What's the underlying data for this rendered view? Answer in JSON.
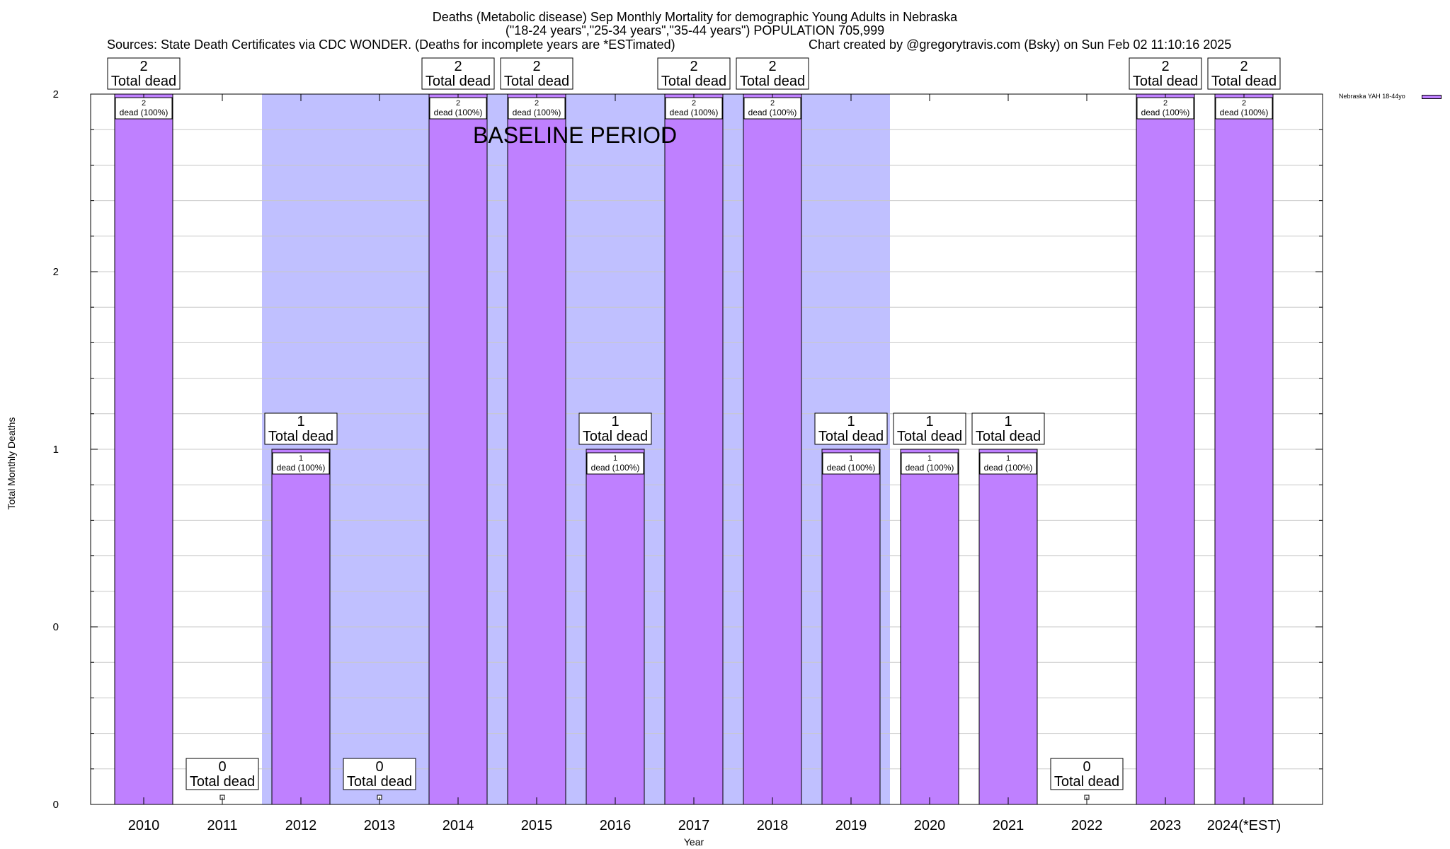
{
  "chart_data": {
    "type": "bar",
    "title": "Deaths (Metabolic disease) Sep Monthly Mortality for demographic Young Adults in Nebraska",
    "subtitle": "(\"18-24 years\",\"25-34 years\",\"35-44 years\") POPULATION 705,999",
    "sources": "Sources: State Death Certificates via CDC WONDER. (Deaths for incomplete years are *ESTimated)",
    "credit": "Chart created by @gregorytravis.com (Bsky) on Sun Feb 02 11:10:16 2025",
    "xlabel": "Year",
    "ylabel": "Total Monthly Deaths",
    "annotation": "BASELINE PERIOD",
    "baseline_range": [
      "2012",
      "2019"
    ],
    "categories": [
      "2010",
      "2011",
      "2012",
      "2013",
      "2014",
      "2015",
      "2016",
      "2017",
      "2018",
      "2019",
      "2020",
      "2021",
      "2022",
      "2023",
      "2024(*EST)"
    ],
    "series": [
      {
        "name": "Nebraska YAH 18-44yo",
        "values": [
          2,
          0,
          1,
          0,
          2,
          2,
          1,
          2,
          2,
          1,
          1,
          1,
          0,
          2,
          2
        ]
      }
    ],
    "total_labels": [
      "2\nTotal dead",
      "0\nTotal dead",
      "1\nTotal dead",
      "0\nTotal dead",
      "2\nTotal dead",
      "2\nTotal dead",
      "1\nTotal dead",
      "2\nTotal dead",
      "2\nTotal dead",
      "1\nTotal dead",
      "1\nTotal dead",
      "1\nTotal dead",
      "0\nTotal dead",
      "2\nTotal dead",
      "2\nTotal dead"
    ],
    "bar_labels": [
      "2\ndead (100%)",
      "",
      "1\ndead (100%)",
      "",
      "2\ndead (100%)",
      "2\ndead (100%)",
      "1\ndead (100%)",
      "2\ndead (100%)",
      "2\ndead (100%)",
      "1\ndead (100%)",
      "1\ndead (100%)",
      "1\ndead (100%)",
      "",
      "2\ndead (100%)",
      "2\ndead (100%)"
    ],
    "ylim": [
      0,
      2
    ],
    "y_tick_labels": [
      "0",
      "0",
      "1",
      "2",
      "2"
    ],
    "grid": true,
    "legend_position": "top-right",
    "colors": {
      "bar": "#bf80ff",
      "baseline": "#c0c0ff",
      "grid": "#c8c8c8"
    }
  }
}
